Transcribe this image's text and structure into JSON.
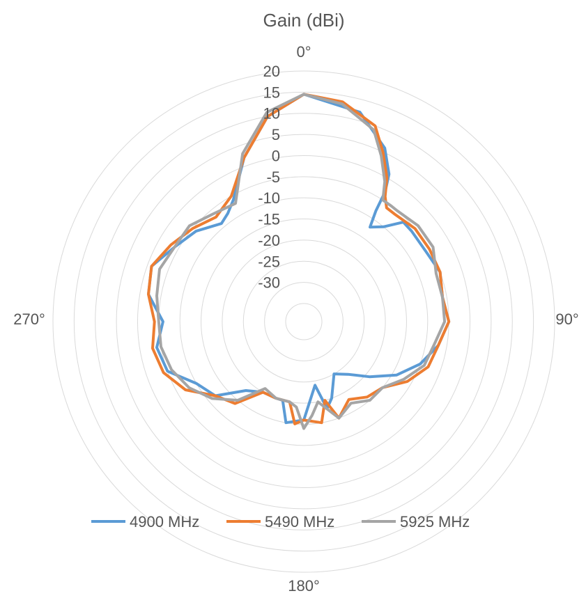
{
  "chart_data": {
    "type": "polar-line",
    "title": "Gain (dBi)",
    "angle_labels": [
      "0°",
      "90°",
      "180°",
      "270°"
    ],
    "radial_ticks": [
      20,
      15,
      10,
      5,
      0,
      -5,
      -10,
      -15,
      -20,
      -25,
      -30
    ],
    "radial_range": [
      -35,
      20
    ],
    "grid": true,
    "legend_position": "bottom",
    "series": [
      {
        "name": "4900 MHz",
        "color": "#5B9BD5",
        "points": [
          [
            0,
            14.5
          ],
          [
            15,
            12
          ],
          [
            25,
            6
          ],
          [
            30,
            1
          ],
          [
            32,
            -3
          ],
          [
            33,
            -8
          ],
          [
            35,
            -12
          ],
          [
            40,
            -10
          ],
          [
            45,
            -6
          ],
          [
            50,
            -6
          ],
          [
            60,
            -6
          ],
          [
            70,
            -5
          ],
          [
            80,
            -6
          ],
          [
            90,
            -5
          ],
          [
            100,
            -7
          ],
          [
            110,
            -10
          ],
          [
            120,
            -14
          ],
          [
            130,
            -19
          ],
          [
            140,
            -23
          ],
          [
            150,
            -25
          ],
          [
            160,
            -20
          ],
          [
            165,
            -18
          ],
          [
            170,
            -24
          ],
          [
            180,
            -16
          ],
          [
            190,
            -15
          ],
          [
            195,
            -20
          ],
          [
            200,
            -20
          ],
          [
            210,
            -20
          ],
          [
            220,
            -18
          ],
          [
            230,
            -12
          ],
          [
            240,
            -10
          ],
          [
            250,
            -5
          ],
          [
            260,
            -4
          ],
          [
            270,
            -6
          ],
          [
            280,
            -2
          ],
          [
            290,
            -1
          ],
          [
            300,
            -4
          ],
          [
            310,
            -6
          ],
          [
            320,
            -9
          ],
          [
            325,
            -8
          ],
          [
            330,
            -6
          ],
          [
            340,
            2
          ],
          [
            350,
            10
          ],
          [
            360,
            14.5
          ]
        ]
      },
      {
        "name": "5490 MHz",
        "color": "#ED7D31",
        "points": [
          [
            0,
            14.5
          ],
          [
            10,
            13.5
          ],
          [
            20,
            10
          ],
          [
            25,
            5
          ],
          [
            30,
            0
          ],
          [
            33,
            -4
          ],
          [
            36,
            -6
          ],
          [
            40,
            -6
          ],
          [
            50,
            -5
          ],
          [
            60,
            -5
          ],
          [
            70,
            -5
          ],
          [
            80,
            -6
          ],
          [
            90,
            -5
          ],
          [
            100,
            -7
          ],
          [
            110,
            -8
          ],
          [
            120,
            -11
          ],
          [
            130,
            -15
          ],
          [
            140,
            -16
          ],
          [
            150,
            -18
          ],
          [
            160,
            -15
          ],
          [
            165,
            -20
          ],
          [
            170,
            -15
          ],
          [
            180,
            -16
          ],
          [
            185,
            -15
          ],
          [
            190,
            -20
          ],
          [
            200,
            -20
          ],
          [
            210,
            -20
          ],
          [
            220,
            -14
          ],
          [
            230,
            -12
          ],
          [
            240,
            -7
          ],
          [
            250,
            -4
          ],
          [
            260,
            -3
          ],
          [
            270,
            -4
          ],
          [
            280,
            -2
          ],
          [
            290,
            -1
          ],
          [
            300,
            -3
          ],
          [
            310,
            -5
          ],
          [
            320,
            -7
          ],
          [
            330,
            -5
          ],
          [
            340,
            2
          ],
          [
            350,
            10
          ],
          [
            360,
            14.5
          ]
        ]
      },
      {
        "name": "5925 MHz",
        "color": "#A5A5A5",
        "points": [
          [
            0,
            14.5
          ],
          [
            10,
            13
          ],
          [
            20,
            9
          ],
          [
            25,
            4
          ],
          [
            30,
            -1
          ],
          [
            33,
            -5
          ],
          [
            37,
            -5
          ],
          [
            40,
            -5
          ],
          [
            50,
            -4
          ],
          [
            60,
            -4
          ],
          [
            70,
            -6
          ],
          [
            80,
            -6
          ],
          [
            90,
            -6
          ],
          [
            100,
            -8
          ],
          [
            110,
            -9
          ],
          [
            120,
            -12
          ],
          [
            130,
            -15
          ],
          [
            140,
            -15
          ],
          [
            150,
            -17
          ],
          [
            160,
            -15
          ],
          [
            170,
            -20
          ],
          [
            175,
            -17
          ],
          [
            180,
            -14
          ],
          [
            185,
            -19
          ],
          [
            190,
            -20
          ],
          [
            200,
            -20
          ],
          [
            210,
            -21
          ],
          [
            220,
            -15
          ],
          [
            230,
            -11
          ],
          [
            240,
            -8
          ],
          [
            250,
            -6
          ],
          [
            260,
            -5
          ],
          [
            270,
            -5
          ],
          [
            280,
            -4
          ],
          [
            290,
            -3
          ],
          [
            300,
            -4
          ],
          [
            310,
            -4
          ],
          [
            320,
            -6
          ],
          [
            330,
            -7
          ],
          [
            340,
            3
          ],
          [
            350,
            11
          ],
          [
            360,
            14.5
          ]
        ]
      }
    ]
  }
}
